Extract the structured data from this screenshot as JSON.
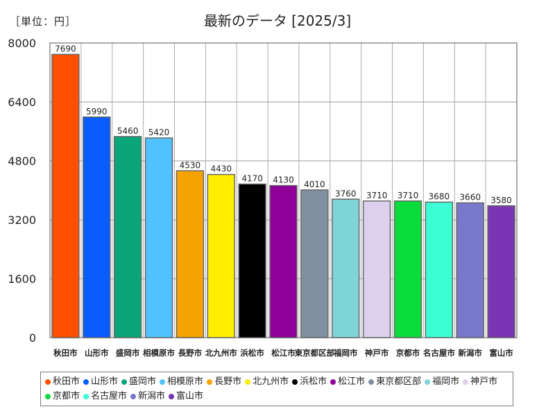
{
  "unit_label": "［単位：円］",
  "chart_data": {
    "type": "bar",
    "title": "最新のデータ [2025/3]",
    "categories": [
      "秋田市",
      "山形市",
      "盛岡市",
      "相模原市",
      "長野市",
      "北九州市",
      "浜松市",
      "松江市",
      "東京都区部",
      "福岡市",
      "神戸市",
      "京都市",
      "名古屋市",
      "新潟市",
      "富山市"
    ],
    "category_labels": [
      "秋田市",
      "山形市",
      "盛岡市",
      "相模原市",
      "長野市",
      "北九州市",
      "浜松市",
      "松江市",
      "東京都区部",
      "福岡市",
      "神戸市",
      "京都市",
      "名古屋市",
      "新潟市",
      "富山市"
    ],
    "values": [
      7690,
      5990,
      5460,
      5420,
      4530,
      4430,
      4170,
      4130,
      4010,
      3760,
      3710,
      3710,
      3680,
      3660,
      3580
    ],
    "colors": [
      "#ff4f00",
      "#0a5cff",
      "#0aa67a",
      "#4fc3ff",
      "#f5a300",
      "#ffee00",
      "#000000",
      "#8f0099",
      "#8090a0",
      "#7fd4d8",
      "#dcd0ec",
      "#0adc3c",
      "#3cffd6",
      "#7878cc",
      "#7a35b5"
    ],
    "yticks": [
      0,
      1600,
      3200,
      4800,
      6400,
      8000
    ],
    "ylim": [
      0,
      8000
    ],
    "xlabel": "",
    "ylabel": "",
    "grid": true,
    "legend": "bottom"
  }
}
